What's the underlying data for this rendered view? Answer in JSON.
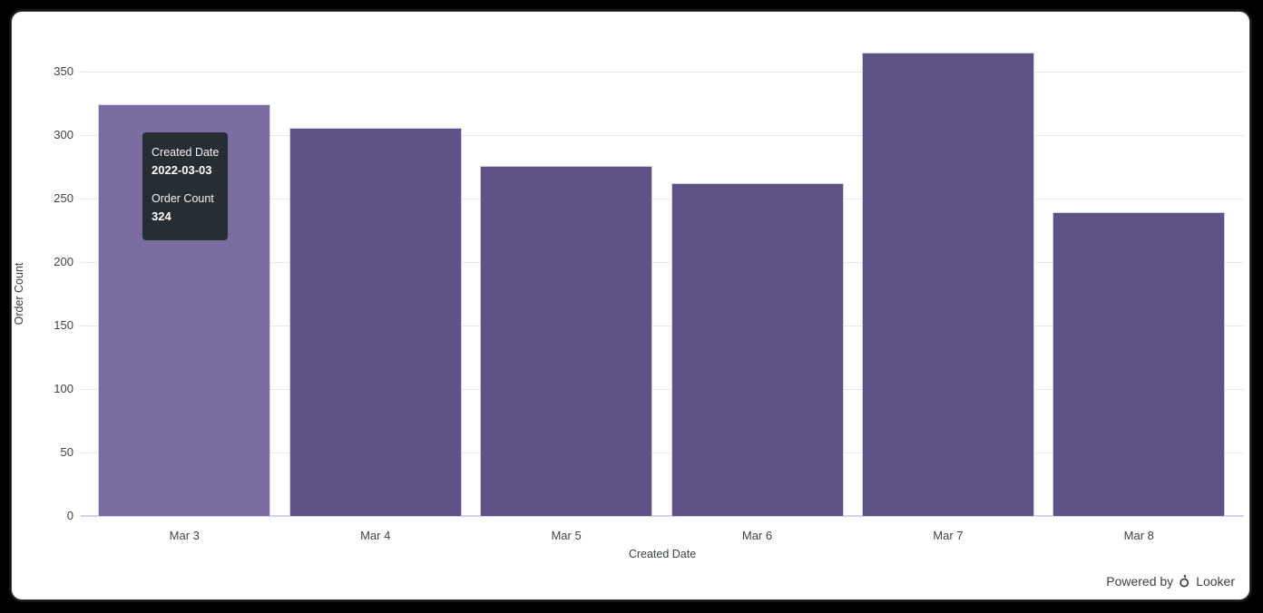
{
  "chart_data": {
    "type": "bar",
    "title": "",
    "categories": [
      "Mar 3",
      "Mar 4",
      "Mar 5",
      "Mar 6",
      "Mar 7",
      "Mar 8"
    ],
    "values": [
      324,
      306,
      276,
      262,
      365,
      239
    ],
    "xlabel": "Created Date",
    "ylabel": "Order Count",
    "ylim": [
      0,
      379
    ],
    "yticks": [
      0,
      50,
      100,
      150,
      200,
      250,
      300,
      350
    ],
    "grid": true,
    "legend": "none",
    "bar_color": "#5e5287",
    "hover_bar_color": "#7b6ca1",
    "hovered_index": 0
  },
  "tooltip": {
    "fields": [
      {
        "label": "Created Date",
        "value": "2022-03-03"
      },
      {
        "label": "Order Count",
        "value": "324"
      }
    ],
    "background": "#262d33",
    "text_color": "#ffffff"
  },
  "footer": {
    "powered_by": "Powered by",
    "brand": "Looker"
  },
  "colors": {
    "gridline": "#e7e7ea",
    "axis_baseline": "#ccd3ea",
    "tick_label": "#3f4247",
    "page_background": "#000000",
    "panel_background": "#ffffff"
  }
}
